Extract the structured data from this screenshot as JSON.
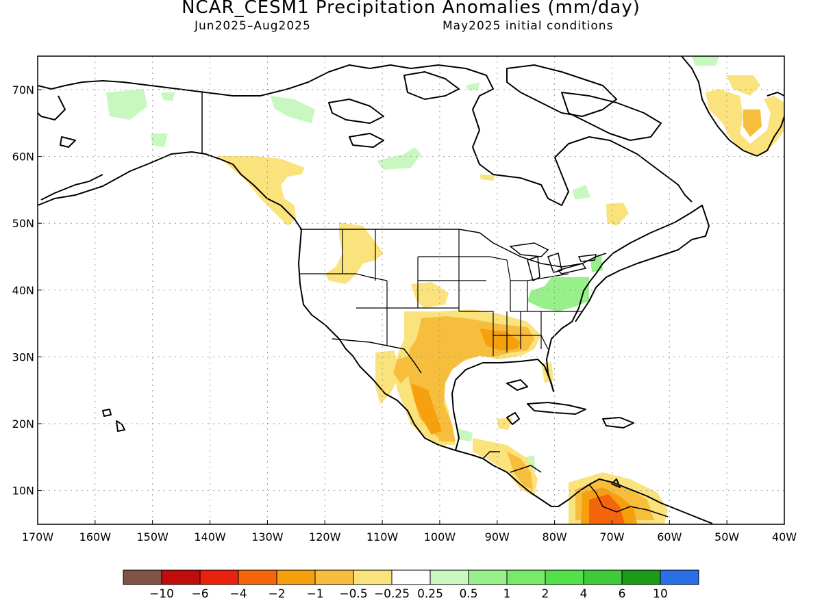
{
  "title": "NCAR_CESM1 Precipitation Anomalies (mm/day)",
  "subtitle_left": "Jun2025–Aug2025",
  "subtitle_right": "May2025 initial conditions",
  "lat_labels": [
    "70N",
    "60N",
    "50N",
    "40N",
    "30N",
    "20N",
    "10N"
  ],
  "lon_labels": [
    "170W",
    "160W",
    "150W",
    "140W",
    "130W",
    "120W",
    "110W",
    "100W",
    "90W",
    "80W",
    "70W",
    "60W",
    "50W",
    "40W"
  ],
  "colorbar": {
    "colors": [
      "#7f5447",
      "#bf0d0d",
      "#e8220d",
      "#f5660c",
      "#f5a00c",
      "#f7bd3c",
      "#fae27d",
      "#ffffff",
      "#c8f7c0",
      "#98f08a",
      "#78ea6a",
      "#52e148",
      "#3fca3a",
      "#1a9c18",
      "#2a6fe8"
    ],
    "labels": [
      "−10",
      "−6",
      "−4",
      "−2",
      "−1",
      "−0.5",
      "−0.25",
      "0.25",
      "0.5",
      "1",
      "2",
      "4",
      "6",
      "10"
    ]
  }
}
